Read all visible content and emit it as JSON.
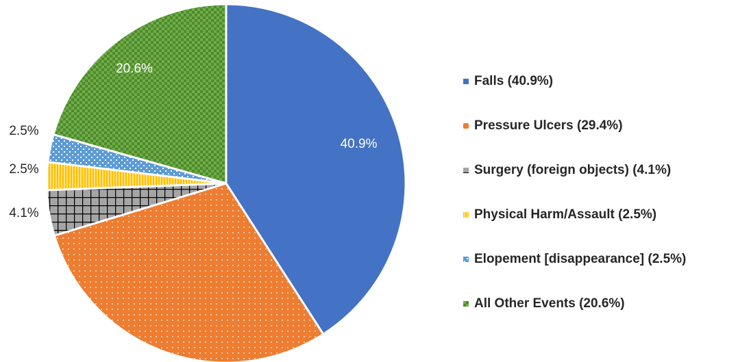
{
  "chart_data": {
    "type": "pie",
    "categories": [
      "Falls (40.9%)",
      "Pressure Ulcers (29.4%)",
      "Surgery (foreign objects) (4.1%)",
      "Physical Harm/Assault (2.5%)",
      "Elopement [disappearance] (2.5%)",
      "All Other Events (20.6%)"
    ],
    "values": [
      40.9,
      29.4,
      4.1,
      2.5,
      2.5,
      20.6
    ],
    "value_labels": [
      "40.9%",
      null,
      "4.1%",
      "2.5%",
      "2.5%",
      "20.6%"
    ],
    "colors": [
      "#4472c4",
      "#ed7d31",
      "#a5a5a5",
      "#ffc000",
      "#5b9bd5",
      "#70ad47"
    ],
    "legend": "right"
  }
}
